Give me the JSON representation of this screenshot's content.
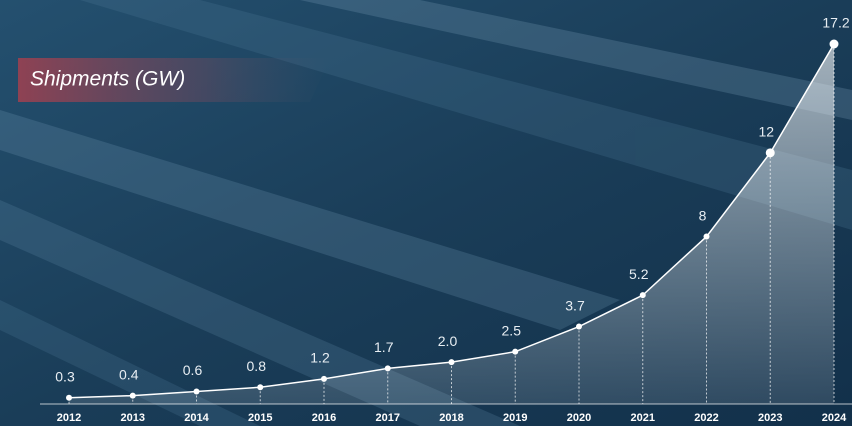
{
  "chart_data": {
    "type": "area",
    "title": "Shipments (GW)",
    "categories": [
      "2012",
      "2013",
      "2014",
      "2015",
      "2016",
      "2017",
      "2018",
      "2019",
      "2020",
      "2021",
      "2022",
      "2023",
      "2024"
    ],
    "values": [
      0.3,
      0.4,
      0.6,
      0.8,
      1.2,
      1.7,
      2.0,
      2.5,
      3.7,
      5.2,
      8,
      12,
      17.2
    ],
    "value_labels": [
      "0.3",
      "0.4",
      "0.6",
      "0.8",
      "1.2",
      "1.7",
      "2.0",
      "2.5",
      "3.7",
      "5.2",
      "8",
      "12",
      "17.2"
    ],
    "color": "#ffffff"
  }
}
